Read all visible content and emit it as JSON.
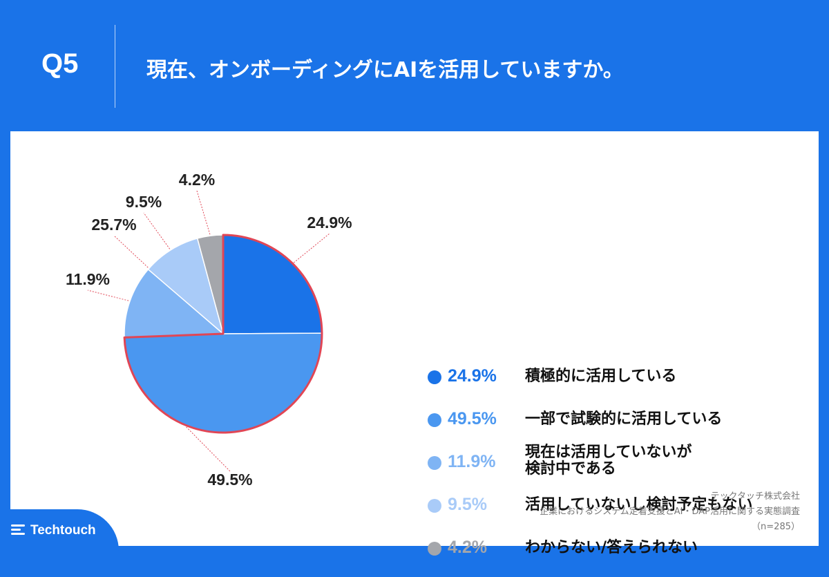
{
  "header": {
    "question_no": "Q5",
    "question": "現在、オンボーディングにAIを活用していますか。"
  },
  "chart_data": {
    "type": "pie",
    "title": "現在、オンボーディングにAIを活用していますか。",
    "n": 285,
    "start": "12 o'clock, clockwise",
    "slices": [
      {
        "label": "積極的に活用している",
        "value": 24.9,
        "display": "24.9%",
        "color": "#1a73e8",
        "text_color": "#1a73e8"
      },
      {
        "label": "一部で試験的に活用している",
        "value": 49.5,
        "display": "49.5%",
        "color": "#4a97f0",
        "text_color": "#4a97f0"
      },
      {
        "label": "現在は活用していないが検討中である",
        "value": 11.9,
        "display": "11.9%",
        "color": "#7fb4f4",
        "text_color": "#7fb4f4"
      },
      {
        "label": "活用していないし検討予定もない",
        "value": 9.5,
        "display": "9.5%",
        "color": "#a9cbf8",
        "text_color": "#a9cbf8"
      },
      {
        "label": "わからない/答えられない",
        "value": 4.2,
        "display": "4.2%",
        "color": "#a4a6ab",
        "text_color": "#a4a6ab"
      }
    ],
    "highlight_color": "#e14655",
    "callout_labels": [
      "24.9%",
      "49.5%",
      "11.9%",
      "25.7%",
      "9.5%",
      "4.2%"
    ]
  },
  "legend": {
    "rows": [
      {
        "pct": "24.9%",
        "label_lines": [
          "積極的に活用している"
        ]
      },
      {
        "pct": "49.5%",
        "label_lines": [
          "一部で試験的に活用している"
        ]
      },
      {
        "pct": "11.9%",
        "label_lines": [
          "現在は活用していないが",
          "検討中である"
        ]
      },
      {
        "pct": "9.5%",
        "label_lines": [
          "活用していないし検討予定もない"
        ]
      },
      {
        "pct": "4.2%",
        "label_lines": [
          "わからない/答えられない"
        ]
      }
    ]
  },
  "footer": {
    "company": "テックタッチ株式会社",
    "survey": "企業におけるシステム定着支援とAI・DAP活用に関する実態調査",
    "sample": "（n=285）"
  },
  "brand": {
    "logo_text": "Techtouch",
    "logo_icon": "techtouch-lines-icon",
    "color": "#1a73e8"
  }
}
